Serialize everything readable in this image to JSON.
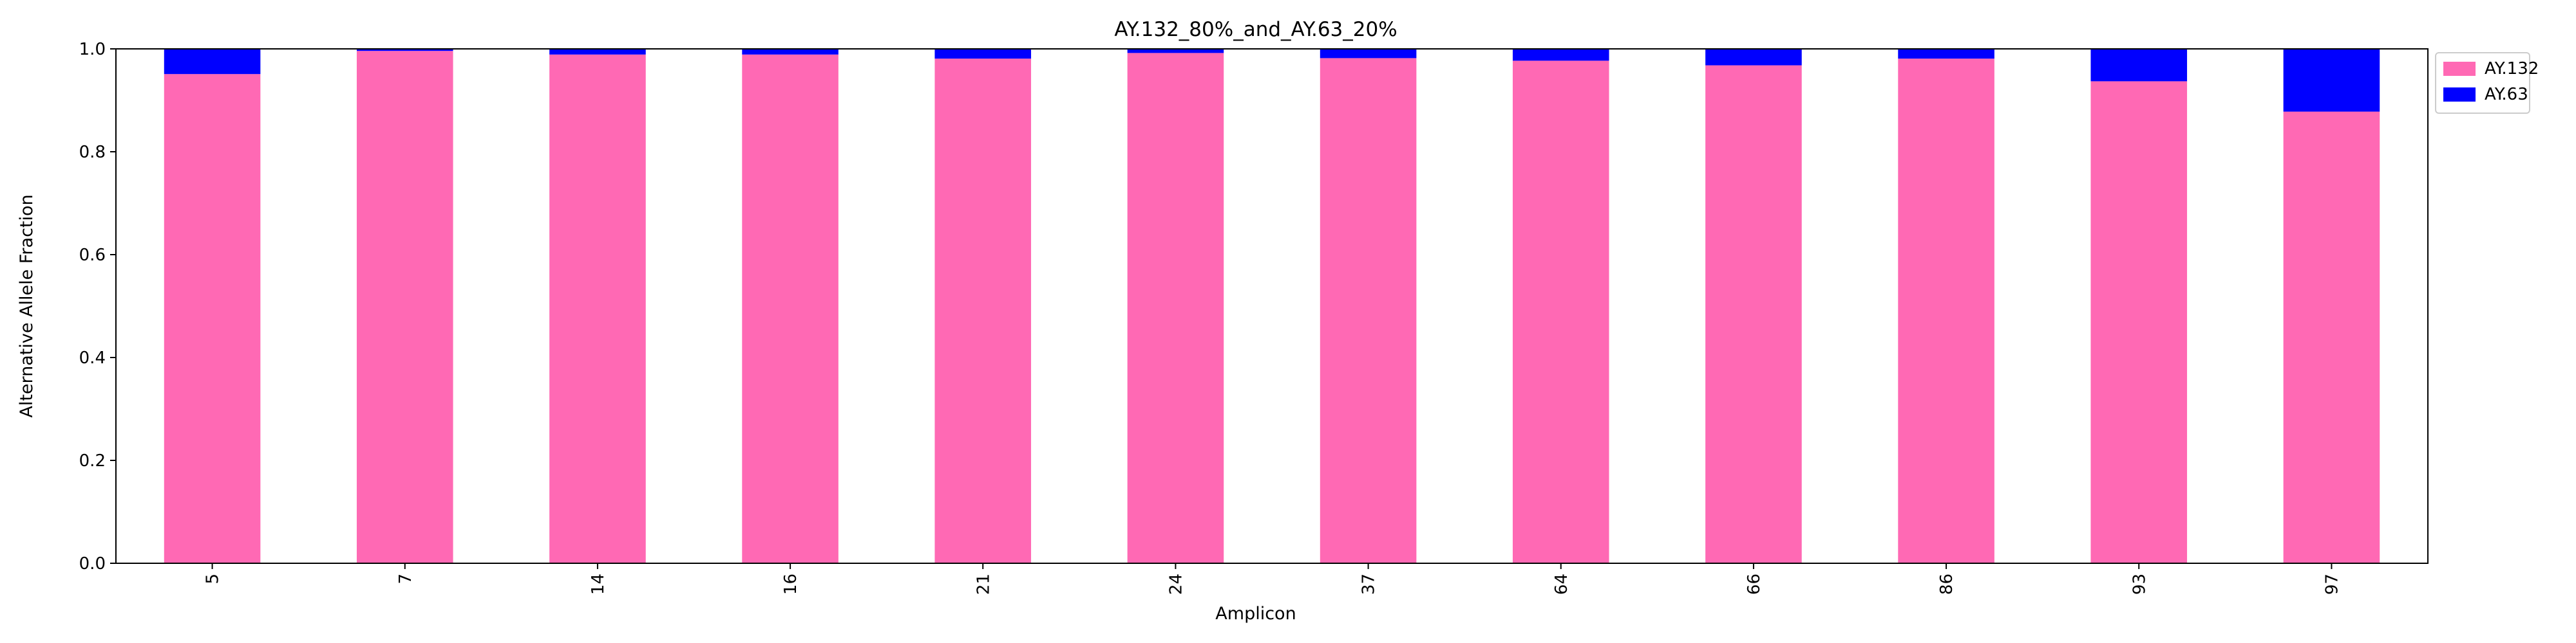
{
  "chart_data": {
    "type": "bar",
    "stacked": true,
    "title": "AY.132_80%_and_AY.63_20%",
    "xlabel": "Amplicon",
    "ylabel": "Alternative Allele Fraction",
    "ylim": [
      0,
      1.0
    ],
    "yticks": [
      "0.0",
      "0.2",
      "0.4",
      "0.6",
      "0.8",
      "1.0"
    ],
    "categories": [
      "5",
      "7",
      "14",
      "16",
      "21",
      "24",
      "37",
      "64",
      "66",
      "86",
      "93",
      "97"
    ],
    "series": [
      {
        "name": "AY.132",
        "color": "#ff69b4",
        "values": [
          0.951,
          0.996,
          0.989,
          0.989,
          0.981,
          0.992,
          0.982,
          0.977,
          0.968,
          0.981,
          0.937,
          0.878
        ]
      },
      {
        "name": "AY.63",
        "color": "#0000ff",
        "values": [
          0.049,
          0.004,
          0.011,
          0.011,
          0.019,
          0.008,
          0.018,
          0.023,
          0.032,
          0.019,
          0.063,
          0.122
        ]
      }
    ],
    "legend_position": "outside-top-right",
    "grid": false
  }
}
